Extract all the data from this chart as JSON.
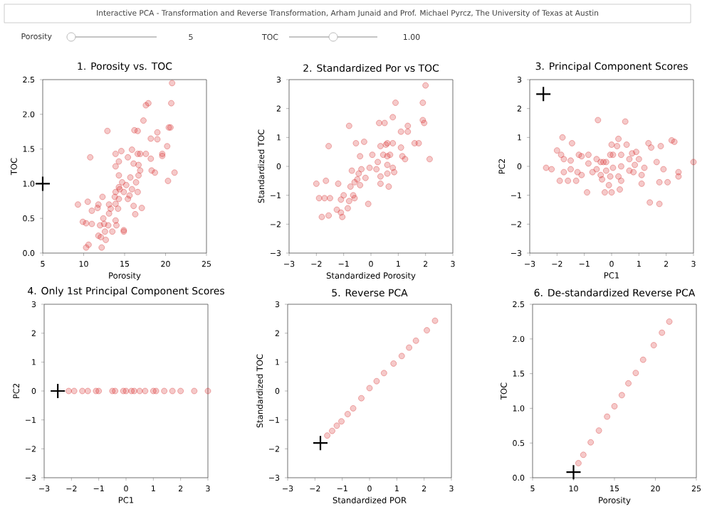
{
  "chart_data": [
    {
      "type": "other",
      "title": "Interactive PCA - Transformation and Reverse Transformation, Arham Junaid and Prof. Michael Pyrcz, The University of Texas at Austin",
      "annotations": [
        "Porosity",
        "5",
        "TOC",
        "1.00"
      ]
    },
    {
      "type": "scatter",
      "title": "1. Porosity vs. TOC",
      "xlabel": "Porosity",
      "ylabel": "TOC",
      "xlim": [
        5,
        25
      ],
      "ylim": [
        0,
        2.5
      ],
      "xticks": [
        5,
        10,
        15,
        20,
        25
      ],
      "yticks": [
        {
          "value": 0,
          "label": "0.0"
        },
        {
          "value": 0.5,
          "label": "0.5"
        },
        {
          "value": 1,
          "label": "1.0"
        },
        {
          "value": 1.5,
          "label": "1.5"
        },
        {
          "value": 2,
          "label": "2.0"
        },
        {
          "value": 2.5,
          "label": "2.5"
        }
      ],
      "series": [
        {
          "marker": "circle",
          "color": "#d62728",
          "x": [
            20.8,
            20.7,
            17.9,
            17.6,
            17.3,
            12.9,
            16.2,
            16.6,
            20.6,
            20.4,
            19.0,
            18.2,
            19.0,
            20.2,
            19.6,
            19.6,
            15.9,
            16.6,
            16.9,
            17.6,
            14.6,
            13.9,
            10.8,
            15.4,
            14.3,
            18.2,
            16.1,
            16.7,
            13.9,
            16.9,
            18.3,
            18.7,
            21.1,
            16.7,
            14.3,
            15.7,
            20.3,
            14.7,
            15.2,
            16.4,
            14.3,
            14.4,
            13.9,
            15.9,
            14.9,
            15.6,
            13.8,
            12.3,
            16.6,
            14.3,
            15.4,
            13.9,
            13.1,
            10.5,
            9.3,
            11.8,
            11.7,
            13.3,
            14.2,
            16.1,
            17.1,
            11.0,
            16.3,
            13.1,
            12.4,
            13.9,
            9.9,
            10.3,
            11.0,
            12.0,
            12.5,
            13.0,
            14.0,
            12.6,
            13.5,
            14.9,
            14.9,
            11.8,
            12.1,
            12.7,
            10.6,
            10.3,
            12.2
          ],
          "values": [
            2.45,
            2.16,
            2.16,
            2.13,
            1.91,
            1.76,
            1.77,
            1.76,
            1.81,
            1.81,
            1.74,
            1.65,
            1.64,
            1.54,
            1.43,
            1.4,
            1.49,
            1.43,
            1.43,
            1.43,
            1.47,
            1.43,
            1.38,
            1.38,
            1.32,
            1.36,
            1.29,
            1.27,
            1.25,
            1.19,
            1.19,
            1.16,
            1.16,
            1.12,
            1.12,
            1.09,
            1.04,
            1.02,
            0.98,
            1.02,
            0.95,
            0.92,
            0.88,
            0.92,
            0.88,
            0.83,
            0.81,
            0.81,
            0.88,
            0.78,
            0.78,
            0.71,
            0.7,
            0.74,
            0.7,
            0.7,
            0.65,
            0.64,
            0.64,
            0.68,
            0.65,
            0.61,
            0.56,
            0.57,
            0.5,
            0.47,
            0.45,
            0.43,
            0.42,
            0.4,
            0.42,
            0.4,
            0.4,
            0.31,
            0.31,
            0.33,
            0.31,
            0.25,
            0.23,
            0.19,
            0.12,
            0.08,
            0.08
          ]
        },
        {
          "marker": "cross",
          "color": "#000000",
          "x": [
            5
          ],
          "values": [
            1.0
          ]
        }
      ]
    },
    {
      "type": "scatter",
      "title": "2. Standardized Por vs TOC",
      "xlabel": "Standardized Porosity",
      "ylabel": "Standardized TOC",
      "xlim": [
        -3,
        3
      ],
      "ylim": [
        -3,
        3
      ],
      "xticks": [
        {
          "value": -3,
          "label": "−3"
        },
        {
          "value": -2,
          "label": "−2"
        },
        {
          "value": -1,
          "label": "−1"
        },
        0,
        1,
        2,
        3
      ],
      "yticks": [
        {
          "value": -3,
          "label": "−3"
        },
        {
          "value": -2,
          "label": "−2"
        },
        {
          "value": -1,
          "label": "−1"
        },
        0,
        1,
        2,
        3
      ],
      "series": [
        {
          "marker": "circle",
          "color": "#d62728",
          "x": [
            2.0,
            1.9,
            0.9,
            0.8,
            -0.8,
            0.3,
            0.5,
            1.9,
            1.95,
            1.35,
            1.1,
            1.35,
            1.75,
            1.6,
            -1.55,
            -0.55,
            -0.25,
            0.35,
            0.55,
            0.6,
            0.8,
            1.1,
            2.15,
            1.15,
            1.25,
            0.45,
            0.6,
            0.7,
            -0.4,
            0.05,
            0.25,
            -0.05,
            0.2,
            -0.35,
            -0.7,
            -0.45,
            -0.2,
            -0.5,
            0.35,
            0.6,
            0.85,
            0.8,
            0.6,
            -0.6,
            -0.4,
            -0.75,
            0.65,
            0.35,
            -1.2,
            -1.0,
            -0.65,
            -0.6,
            -1.65,
            -2.0,
            -1.9,
            -1.7,
            -1.5,
            -1.1,
            -0.8,
            -0.1,
            -0.85,
            -1.25,
            -1.1,
            -1.8,
            -1.55,
            -1.05
          ],
          "values": [
            2.8,
            2.2,
            2.2,
            1.7,
            1.4,
            1.5,
            1.5,
            1.6,
            1.5,
            1.4,
            1.2,
            1.2,
            0.8,
            0.8,
            0.7,
            0.8,
            0.85,
            0.7,
            0.75,
            0.8,
            0.8,
            0.65,
            0.25,
            0.35,
            0.25,
            0.4,
            0.35,
            0.4,
            0.35,
            0.4,
            0.15,
            -0.05,
            -0.1,
            -0.1,
            -0.15,
            -0.25,
            -0.4,
            -0.45,
            -0.35,
            -0.25,
            -0.2,
            -0.05,
            0.05,
            -0.55,
            -0.65,
            -0.7,
            -0.7,
            -0.6,
            -0.6,
            -1.0,
            -1.0,
            -1.1,
            -0.5,
            -0.6,
            -1.1,
            -1.1,
            -1.1,
            -1.15,
            -1.2,
            -1.3,
            -1.45,
            -1.5,
            -1.6,
            -1.75,
            -1.7,
            -1.75
          ]
        }
      ]
    },
    {
      "type": "scatter",
      "title": "3. Principal Component Scores",
      "xlabel": "PC1",
      "ylabel": "PC2",
      "xlim": [
        -3,
        3
      ],
      "ylim": [
        -3,
        3
      ],
      "xticks": [
        {
          "value": -3,
          "label": "−3"
        },
        {
          "value": -2,
          "label": "−2"
        },
        {
          "value": -1,
          "label": "−1"
        },
        0,
        1,
        2,
        3
      ],
      "yticks": [
        {
          "value": -3,
          "label": "−3"
        },
        {
          "value": -2,
          "label": "−2"
        },
        {
          "value": -1,
          "label": "−1"
        },
        0,
        1,
        2,
        3
      ],
      "series": [
        {
          "marker": "circle",
          "color": "#d62728",
          "x": [
            -0.5,
            0.5,
            -1.8,
            0.25,
            0.0,
            0.2,
            0.55,
            -1.45,
            1.35,
            1.45,
            1.8,
            2.2,
            2.3,
            -2.0,
            -1.85,
            -0.85,
            -1.2,
            -1.1,
            -0.05,
            0.05,
            0.35,
            0.75,
            0.9,
            -1.75,
            -1.5,
            -0.55,
            -0.4,
            -0.3,
            -0.2,
            0.65,
            1.0,
            1.65,
            3.0,
            -2.4,
            -2.2,
            -1.5,
            -0.85,
            -0.55,
            -0.2,
            0.05,
            0.35,
            0.85,
            1.2,
            1.9,
            -1.75,
            -1.25,
            -1.1,
            -0.7,
            -0.4,
            -0.05,
            0.25,
            0.65,
            0.8,
            1.1,
            2.45,
            2.45,
            -1.9,
            -1.6,
            -1.3,
            -0.35,
            0.35,
            -0.1,
            1.1,
            1.75,
            2.05,
            -0.9,
            -0.25,
            0.0,
            0.3,
            1.4,
            1.75
          ],
          "values": [
            1.6,
            1.55,
            1.0,
            0.95,
            0.75,
            0.7,
            0.75,
            0.8,
            0.8,
            0.65,
            0.7,
            0.9,
            0.85,
            0.55,
            0.4,
            0.4,
            0.4,
            0.35,
            0.4,
            0.4,
            0.4,
            0.45,
            0.5,
            0.25,
            0.2,
            0.25,
            0.15,
            0.15,
            0.15,
            0.25,
            0.25,
            0.15,
            0.15,
            -0.05,
            -0.1,
            -0.1,
            0.1,
            -0.1,
            -0.15,
            -0.05,
            0.0,
            0.05,
            -0.05,
            -0.1,
            -0.2,
            -0.2,
            -0.3,
            -0.2,
            -0.3,
            -0.35,
            -0.35,
            -0.15,
            -0.2,
            -0.3,
            -0.2,
            -0.35,
            -0.5,
            -0.5,
            -0.5,
            -0.45,
            -0.5,
            -0.65,
            -0.6,
            -0.55,
            -0.55,
            -0.9,
            -0.9,
            -0.9,
            -0.8,
            -1.25,
            -1.3
          ]
        },
        {
          "marker": "cross",
          "color": "#000000",
          "x": [
            -2.5
          ],
          "values": [
            2.5
          ]
        }
      ]
    },
    {
      "type": "scatter",
      "title": "4. Only 1st Principal Component Scores",
      "xlabel": "PC1",
      "ylabel": "PC2",
      "xlim": [
        -3,
        3
      ],
      "ylim": [
        -3,
        3
      ],
      "xticks": [
        {
          "value": -3,
          "label": "−3"
        },
        {
          "value": -2,
          "label": "−2"
        },
        {
          "value": -1,
          "label": "−1"
        },
        0,
        1,
        2,
        3
      ],
      "yticks": [
        {
          "value": -3,
          "label": "−3"
        },
        {
          "value": -2,
          "label": "−2"
        },
        {
          "value": -1,
          "label": "−1"
        },
        0,
        1,
        2,
        3
      ],
      "series": [
        {
          "marker": "circle",
          "color": "#d62728",
          "x": [
            -2.1,
            -1.9,
            -1.6,
            -1.4,
            -1.1,
            -1.0,
            -0.5,
            -0.4,
            -0.1,
            0.0,
            0.2,
            0.3,
            0.5,
            0.7,
            1.0,
            1.1,
            1.4,
            1.7,
            2.0,
            2.5,
            3.0
          ],
          "values": [
            0,
            0,
            0,
            0,
            0,
            0,
            0,
            0,
            0,
            0,
            0,
            0,
            0,
            0,
            0,
            0,
            0,
            0,
            0,
            0,
            0
          ]
        },
        {
          "marker": "cross",
          "color": "#000000",
          "x": [
            -2.5
          ],
          "values": [
            0
          ]
        }
      ]
    },
    {
      "type": "scatter",
      "title": "5. Reverse PCA",
      "xlabel": "Standardized POR",
      "ylabel": "Standardized TOC",
      "xlim": [
        -3,
        3
      ],
      "ylim": [
        -3,
        3
      ],
      "xticks": [
        {
          "value": -3,
          "label": "−3"
        },
        {
          "value": -2,
          "label": "−2"
        },
        {
          "value": -1,
          "label": "−1"
        },
        0,
        1,
        2,
        3
      ],
      "yticks": [
        {
          "value": -3,
          "label": "−3"
        },
        {
          "value": -2,
          "label": "−2"
        },
        {
          "value": -1,
          "label": "−1"
        },
        0,
        1,
        2,
        3
      ],
      "series": [
        {
          "marker": "circle",
          "color": "#d62728",
          "x": [
            -1.55,
            -1.37,
            -1.2,
            -1.03,
            -0.8,
            -0.6,
            -0.3,
            0,
            0.26,
            0.53,
            0.88,
            1.18,
            1.45,
            1.7,
            2.1,
            2.4
          ],
          "values": [
            -1.54,
            -1.38,
            -1.2,
            -1.05,
            -0.8,
            -0.6,
            -0.25,
            0.1,
            0.34,
            0.62,
            0.95,
            1.21,
            1.5,
            1.74,
            2.1,
            2.43
          ]
        },
        {
          "marker": "cross",
          "color": "#000000",
          "x": [
            -1.8
          ],
          "values": [
            -1.8
          ]
        }
      ]
    },
    {
      "type": "scatter",
      "title": "6. De-standardized Reverse PCA",
      "xlabel": "Porosity",
      "ylabel": "TOC",
      "xlim": [
        5,
        25
      ],
      "ylim": [
        0,
        2.5
      ],
      "xticks": [
        5,
        10,
        15,
        20,
        25
      ],
      "yticks": [
        {
          "value": 0,
          "label": "0.0"
        },
        {
          "value": 0.5,
          "label": "0.5"
        },
        {
          "value": 1,
          "label": "1.0"
        },
        {
          "value": 1.5,
          "label": "1.5"
        },
        {
          "value": 2,
          "label": "2.0"
        },
        {
          "value": 2.5,
          "label": "2.5"
        }
      ],
      "series": [
        {
          "marker": "circle",
          "color": "#d62728",
          "x": [
            21.7,
            20.8,
            19.8,
            18.5,
            17.6,
            16.7,
            15.9,
            15.0,
            14.1,
            13.1,
            12.1,
            11.2,
            10.6
          ],
          "values": [
            2.25,
            2.09,
            1.91,
            1.7,
            1.51,
            1.36,
            1.19,
            1.03,
            0.88,
            0.68,
            0.51,
            0.33,
            0.21
          ]
        },
        {
          "marker": "cross",
          "color": "#000000",
          "x": [
            10
          ],
          "values": [
            0.08
          ]
        }
      ]
    }
  ]
}
